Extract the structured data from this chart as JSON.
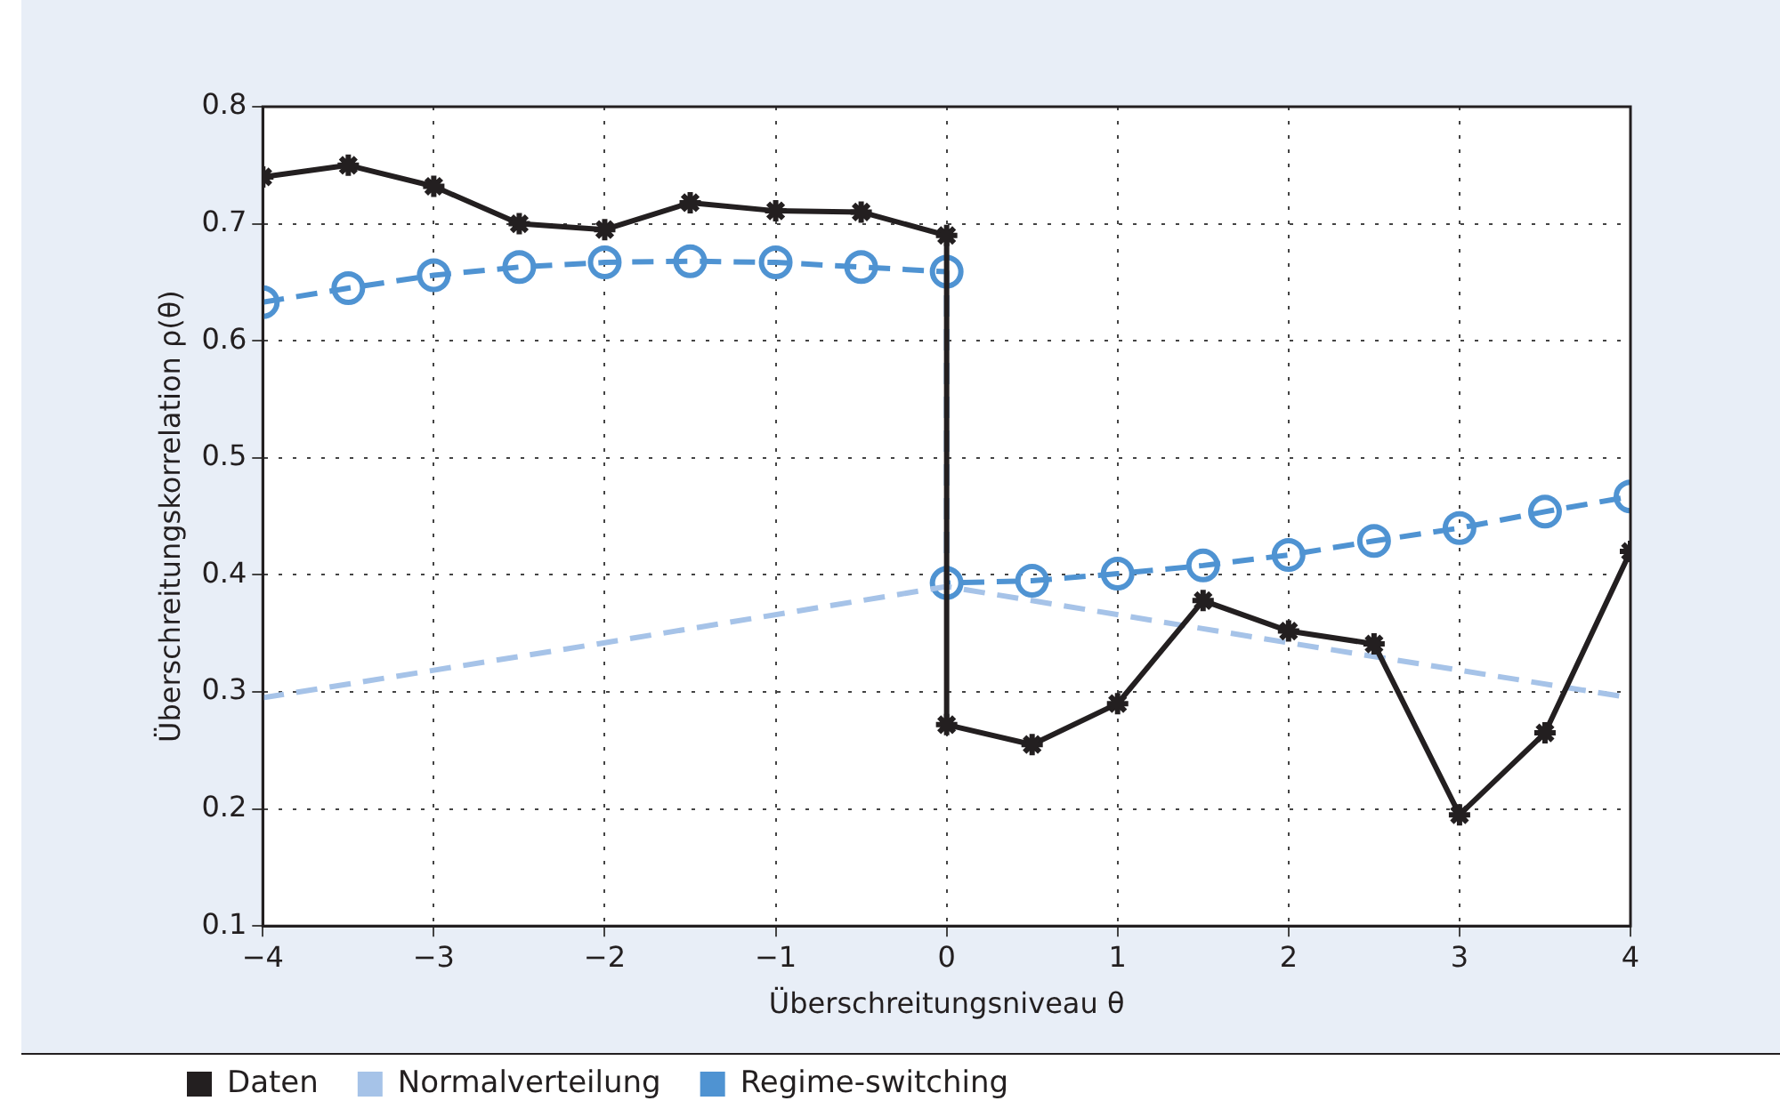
{
  "chart_data": {
    "type": "line",
    "xlabel": "Überschreitungsniveau θ",
    "ylabel": "Überschreitungskorrelation ρ(θ)",
    "xlim": [
      -4,
      4
    ],
    "xticks": [
      {
        "value": -4,
        "label": "−4"
      },
      {
        "value": -3,
        "label": "−3"
      },
      {
        "value": -2,
        "label": "−2"
      },
      {
        "value": -1,
        "label": "−1"
      },
      0,
      1,
      2,
      3,
      4
    ],
    "ylim": [
      0.1,
      0.8
    ],
    "yticks": [
      0.1,
      0.2,
      0.3,
      0.4,
      0.5,
      0.6,
      0.7,
      0.8
    ],
    "grid": true,
    "legend": "bottom",
    "series": [
      {
        "name": "Daten",
        "color": "#231f20",
        "marker": "cross",
        "line_style": "solid",
        "x": [
          -4,
          -3.5,
          -3,
          -2.5,
          -2,
          -1.5,
          -1,
          -0.5,
          0,
          0,
          0.5,
          1,
          1.5,
          2,
          2.5,
          3,
          3.5,
          4
        ],
        "values": [
          0.74,
          0.75,
          0.732,
          0.7,
          0.695,
          0.718,
          0.711,
          0.71,
          0.69,
          0.272,
          0.255,
          0.29,
          0.378,
          0.352,
          0.341,
          0.195,
          0.265,
          0.42
        ]
      },
      {
        "name": "Normalverteilung",
        "color": "#a6c3e8",
        "marker": "none",
        "line_style": "dashed",
        "x": [
          -4,
          -2,
          0,
          2,
          4
        ],
        "values": [
          0.295,
          0.342,
          0.39,
          0.342,
          0.295
        ]
      },
      {
        "name": "Regime-switching",
        "color": "#4f93d2",
        "marker": "circle",
        "line_style": "dashed",
        "x": [
          -4,
          -3.5,
          -3,
          -2.5,
          -2,
          -1.5,
          -1,
          -0.5,
          0,
          0,
          0.5,
          1,
          1.5,
          2,
          2.5,
          3,
          3.5,
          4
        ],
        "values": [
          0.633,
          0.645,
          0.656,
          0.663,
          0.667,
          0.668,
          0.667,
          0.663,
          0.659,
          0.393,
          0.395,
          0.401,
          0.408,
          0.417,
          0.429,
          0.44,
          0.454,
          0.467
        ]
      }
    ]
  }
}
